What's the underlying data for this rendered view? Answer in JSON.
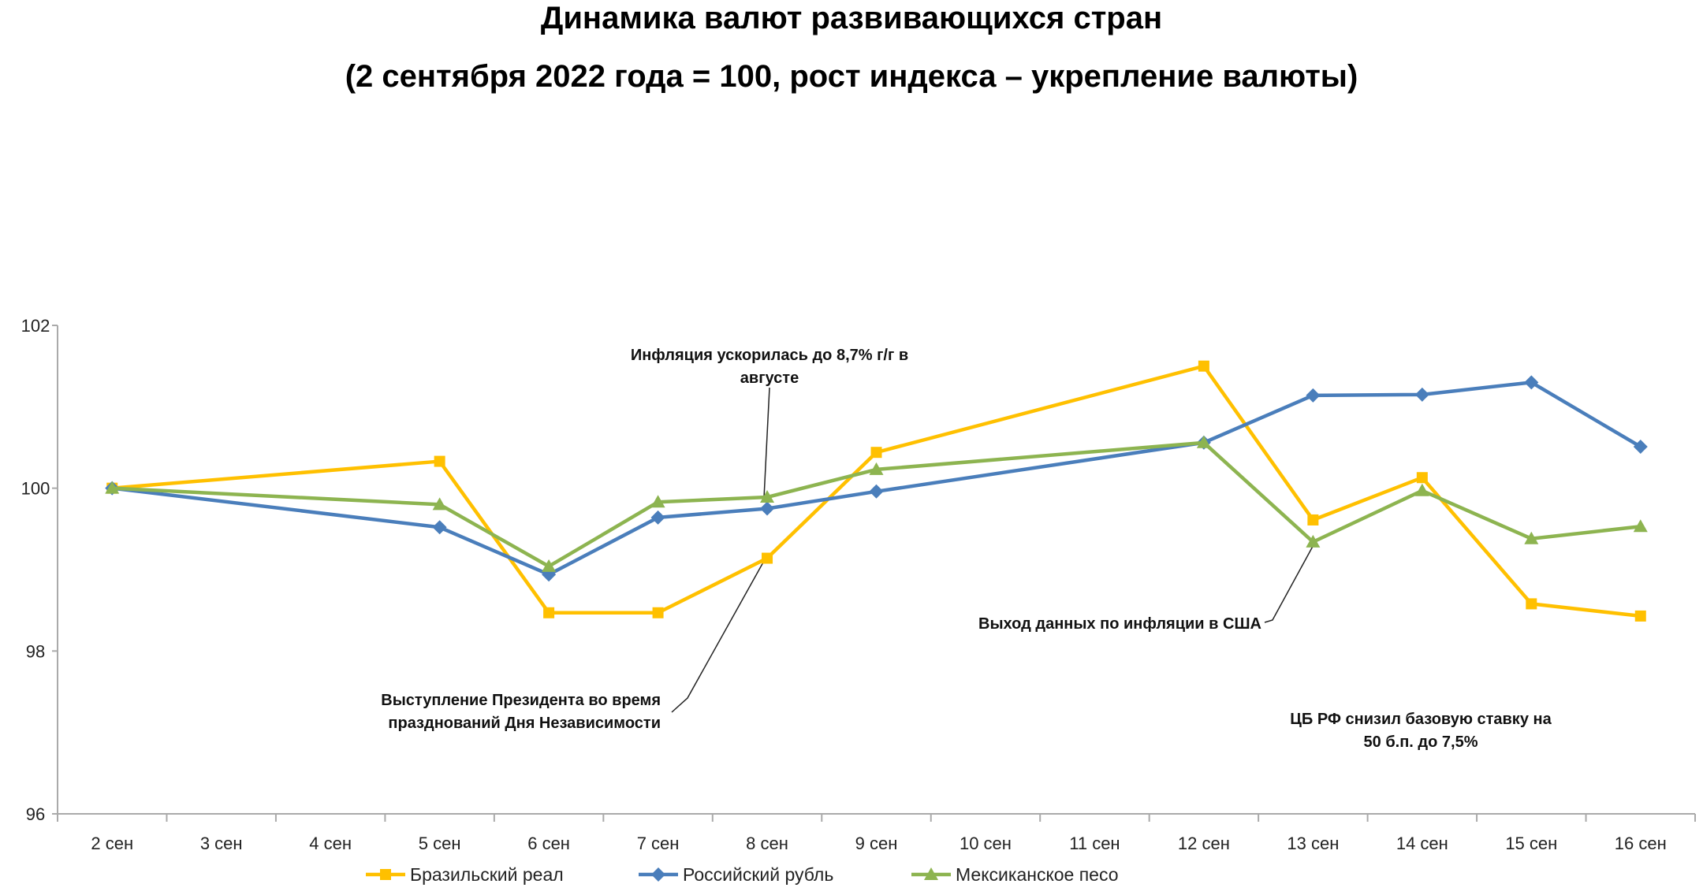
{
  "chart_data": {
    "type": "line",
    "title": "Динамика валют развивающихся стран",
    "subtitle": "(2 сентября 2022 года = 100, рост индекса – укрепление валюты)",
    "xlabel": "",
    "ylabel": "",
    "categories": [
      "2 сен",
      "3 сен",
      "4 сен",
      "5 сен",
      "6 сен",
      "7 сен",
      "8 сен",
      "9 сен",
      "10 сен",
      "11 сен",
      "12 сен",
      "13 сен",
      "14 сен",
      "15 сен",
      "16 сен"
    ],
    "ylim": [
      96,
      102
    ],
    "yticks": [
      "96",
      "98",
      "100",
      "102"
    ],
    "grid": false,
    "legend_position": "bottom",
    "series": [
      {
        "name": "Бразильский реал",
        "color": "#FFC000",
        "marker": "square",
        "values": [
          100,
          null,
          null,
          100.33,
          98.47,
          98.47,
          99.14,
          100.44,
          null,
          null,
          101.5,
          99.61,
          100.13,
          98.58,
          98.43
        ]
      },
      {
        "name": "Российский рубль",
        "color": "#4A7EBB",
        "marker": "diamond",
        "values": [
          100,
          null,
          null,
          99.52,
          98.94,
          99.64,
          99.75,
          99.96,
          null,
          null,
          100.56,
          101.14,
          101.15,
          101.3,
          100.51
        ]
      },
      {
        "name": "Мексиканское песо",
        "color": "#8DB450",
        "marker": "triangle",
        "values": [
          100,
          null,
          null,
          99.8,
          99.04,
          99.83,
          99.89,
          100.23,
          null,
          null,
          100.56,
          99.34,
          99.97,
          99.38,
          99.53
        ]
      }
    ],
    "annotations": [
      {
        "lines": [
          "Инфляция ускорилась до 8,7% г/г в",
          "августе"
        ],
        "target": "8 сен"
      },
      {
        "lines": [
          "Выступление Президента во время",
          "празднований  Дня Независимости"
        ],
        "target": "8 сен"
      },
      {
        "lines": [
          "Выход данных по инфляции в США"
        ],
        "target": "13 сен"
      },
      {
        "lines": [
          "ЦБ РФ снизил базовую ставку на",
          "50 б.п. до 7,5%"
        ],
        "target": "16 сен"
      }
    ]
  }
}
